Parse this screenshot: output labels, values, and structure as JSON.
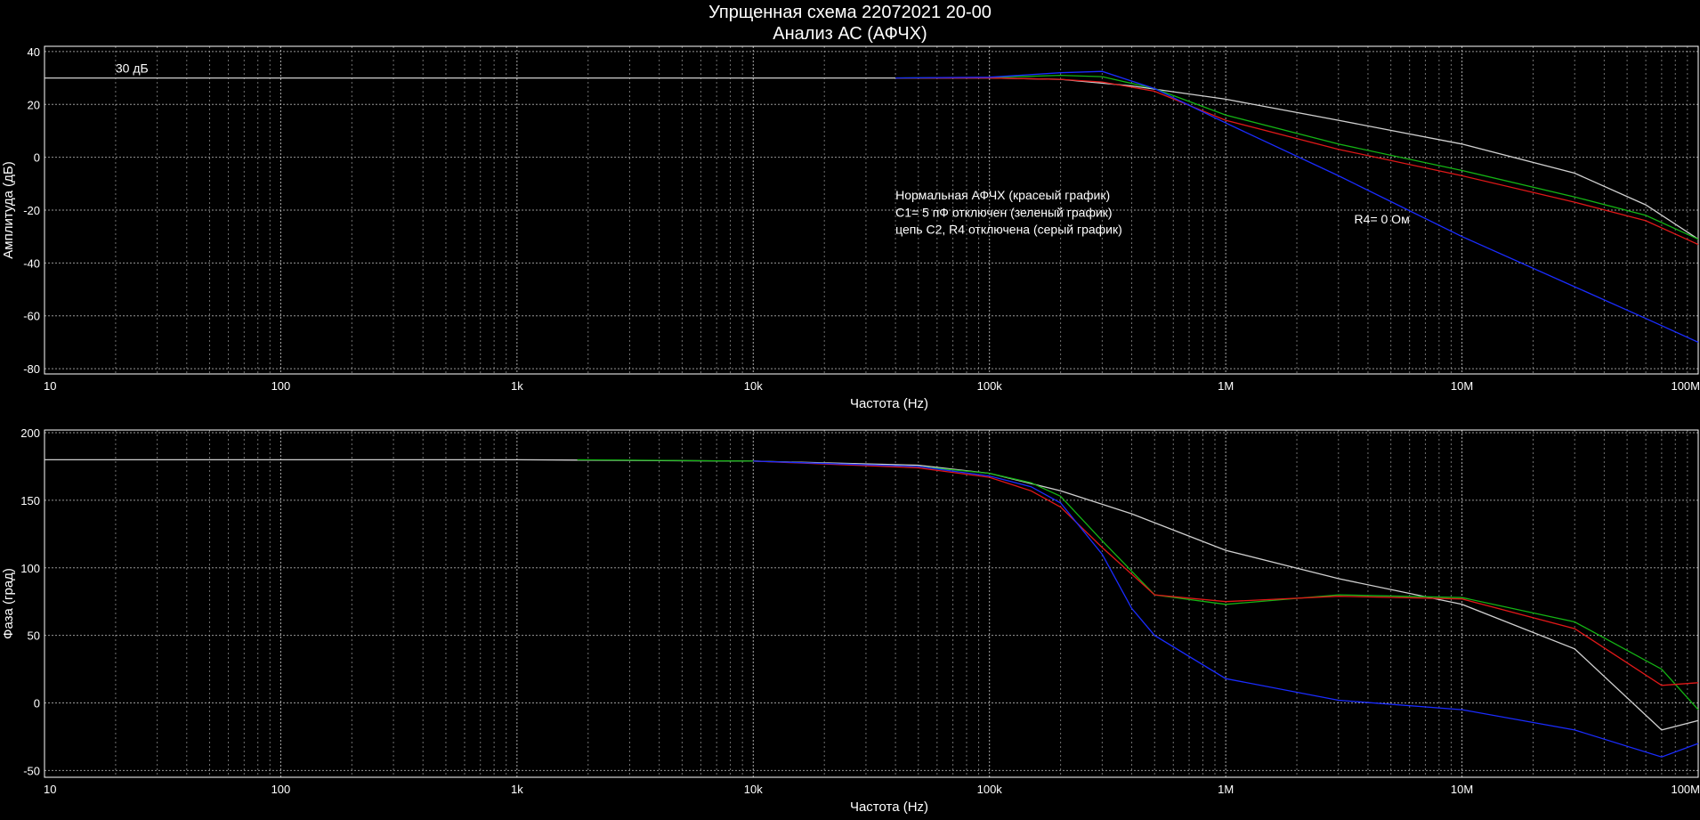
{
  "header": {
    "title": "Упрщенная схема 22072021 20-00",
    "subtitle": "Анализ АС (АФЧХ)"
  },
  "colors": {
    "background": "#000000",
    "grid": "#bdbdbd",
    "red": "#e01818",
    "green": "#14b414",
    "blue": "#1a2cff",
    "gray": "#d0d0d0"
  },
  "chart_data": [
    {
      "type": "line",
      "xscale": "log",
      "xlim": [
        10,
        100000000
      ],
      "ylim": [
        -82,
        42
      ],
      "grid": true,
      "xlabel": "Частота (Hz)",
      "ylabel": "Амплитуда (дБ)",
      "x_ticks": [
        10,
        100,
        1000,
        10000,
        100000,
        1000000,
        10000000,
        100000000
      ],
      "x_tick_labels": [
        "10",
        "100",
        "1k",
        "10k",
        "100k",
        "1M",
        "10M",
        "100M"
      ],
      "y_ticks": [
        40,
        20,
        0,
        -20,
        -40,
        -60,
        -80
      ],
      "y_tick_labels": [
        "40",
        "20",
        "0",
        "-20",
        "-40",
        "-60",
        "-80"
      ],
      "annotations": [
        {
          "text": "30 дБ",
          "x": 20,
          "y": 32
        },
        {
          "text": "Нормальная АФЧХ (красеый график)",
          "x": 40000,
          "y": -16
        },
        {
          "text": "C1= 5 пФ отключен (зеленый график)",
          "x": 40000,
          "y": -22.5
        },
        {
          "text": "цепь C2, R4 отключена (серый график)",
          "x": 40000,
          "y": -29
        },
        {
          "text": "R4= 0 Ом",
          "x": 3500000,
          "y": -25
        }
      ],
      "series": [
        {
          "color": "gray",
          "x": [
            10,
            30000,
            100000,
            200000,
            400000,
            1000000,
            3000000,
            10000000,
            30000000,
            60000000,
            100000000
          ],
          "y": [
            30,
            30,
            30,
            29.5,
            27,
            22,
            14,
            5,
            -6,
            -18,
            -31
          ]
        },
        {
          "color": "green",
          "x": [
            40000,
            100000,
            200000,
            300000,
            500000,
            1000000,
            3000000,
            10000000,
            30000000,
            60000000,
            100000000
          ],
          "y": [
            30,
            30.2,
            31,
            30.5,
            26,
            16,
            5,
            -5,
            -15,
            -22,
            -31
          ]
        },
        {
          "color": "red",
          "x": [
            40000,
            100000,
            200000,
            300000,
            500000,
            1000000,
            3000000,
            10000000,
            30000000,
            60000000,
            100000000
          ],
          "y": [
            30,
            30,
            29.5,
            28.5,
            25,
            14,
            3,
            -7,
            -17,
            -24,
            -33
          ]
        },
        {
          "color": "blue",
          "x": [
            40000,
            100000,
            200000,
            300000,
            500000,
            1000000,
            3000000,
            10000000,
            30000000,
            60000000,
            100000000
          ],
          "y": [
            30,
            30.3,
            32,
            32.5,
            26,
            13,
            -7,
            -30,
            -49,
            -61,
            -70
          ]
        }
      ]
    },
    {
      "type": "line",
      "xscale": "log",
      "xlim": [
        10,
        100000000
      ],
      "ylim": [
        -55,
        202
      ],
      "grid": true,
      "xlabel": "Частота (Hz)",
      "ylabel": "Фаза (град)",
      "x_ticks": [
        10,
        100,
        1000,
        10000,
        100000,
        1000000,
        10000000,
        100000000
      ],
      "x_tick_labels": [
        "10",
        "100",
        "1k",
        "10k",
        "100k",
        "1M",
        "10M",
        "100M"
      ],
      "y_ticks": [
        200,
        150,
        100,
        50,
        0,
        -50
      ],
      "y_tick_labels": [
        "200",
        "150",
        "100",
        "50",
        "0",
        "-50"
      ],
      "series": [
        {
          "color": "gray",
          "x": [
            10,
            1000,
            10000,
            50000,
            100000,
            200000,
            400000,
            1000000,
            3000000,
            10000000,
            30000000,
            70000000,
            100000000
          ],
          "y": [
            180,
            180,
            179,
            176,
            170,
            157,
            140,
            113,
            92,
            73,
            40,
            -20,
            -13
          ]
        },
        {
          "color": "green",
          "x": [
            1800,
            10000,
            50000,
            100000,
            150000,
            200000,
            300000,
            500000,
            1000000,
            3000000,
            10000000,
            30000000,
            70000000,
            100000000
          ],
          "y": [
            180,
            179,
            175,
            170,
            163,
            153,
            120,
            80,
            73,
            80,
            78,
            60,
            25,
            -5
          ]
        },
        {
          "color": "red",
          "x": [
            10000,
            50000,
            100000,
            150000,
            200000,
            300000,
            500000,
            1000000,
            3000000,
            10000000,
            30000000,
            70000000,
            100000000
          ],
          "y": [
            179,
            174,
            167,
            157,
            145,
            115,
            80,
            75,
            79,
            77,
            55,
            13,
            15
          ]
        },
        {
          "color": "blue",
          "x": [
            10000,
            50000,
            100000,
            150000,
            200000,
            300000,
            400000,
            500000,
            1000000,
            3000000,
            10000000,
            30000000,
            70000000,
            100000000
          ],
          "y": [
            179,
            175,
            168,
            160,
            148,
            110,
            70,
            50,
            18,
            2,
            -5,
            -20,
            -40,
            -30
          ]
        }
      ]
    }
  ]
}
